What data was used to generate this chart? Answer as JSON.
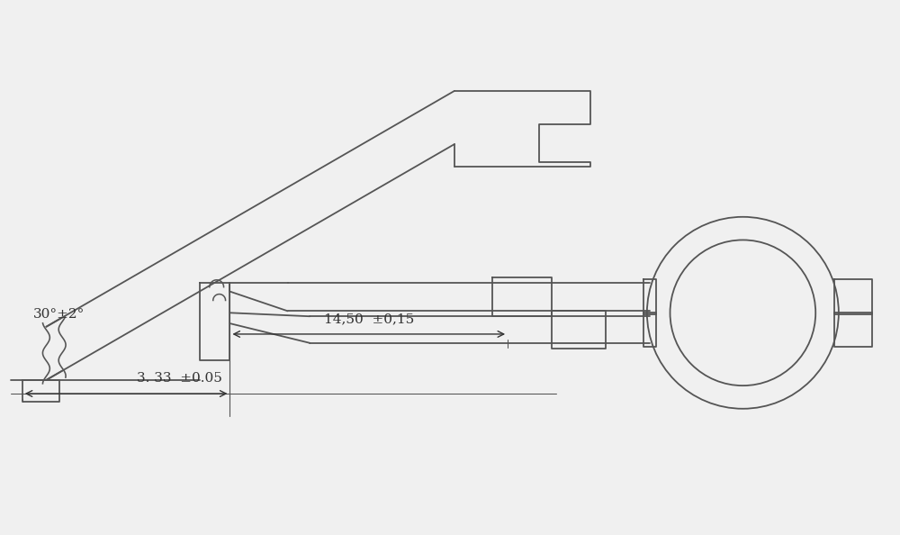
{
  "bg_color": "#f0f0f0",
  "line_color": "#555555",
  "lw": 1.3,
  "annotation_angle": "30°±2°",
  "annotation_dim1": "14,50  ±0,15",
  "annotation_dim2": "3. 33  ±0.05"
}
